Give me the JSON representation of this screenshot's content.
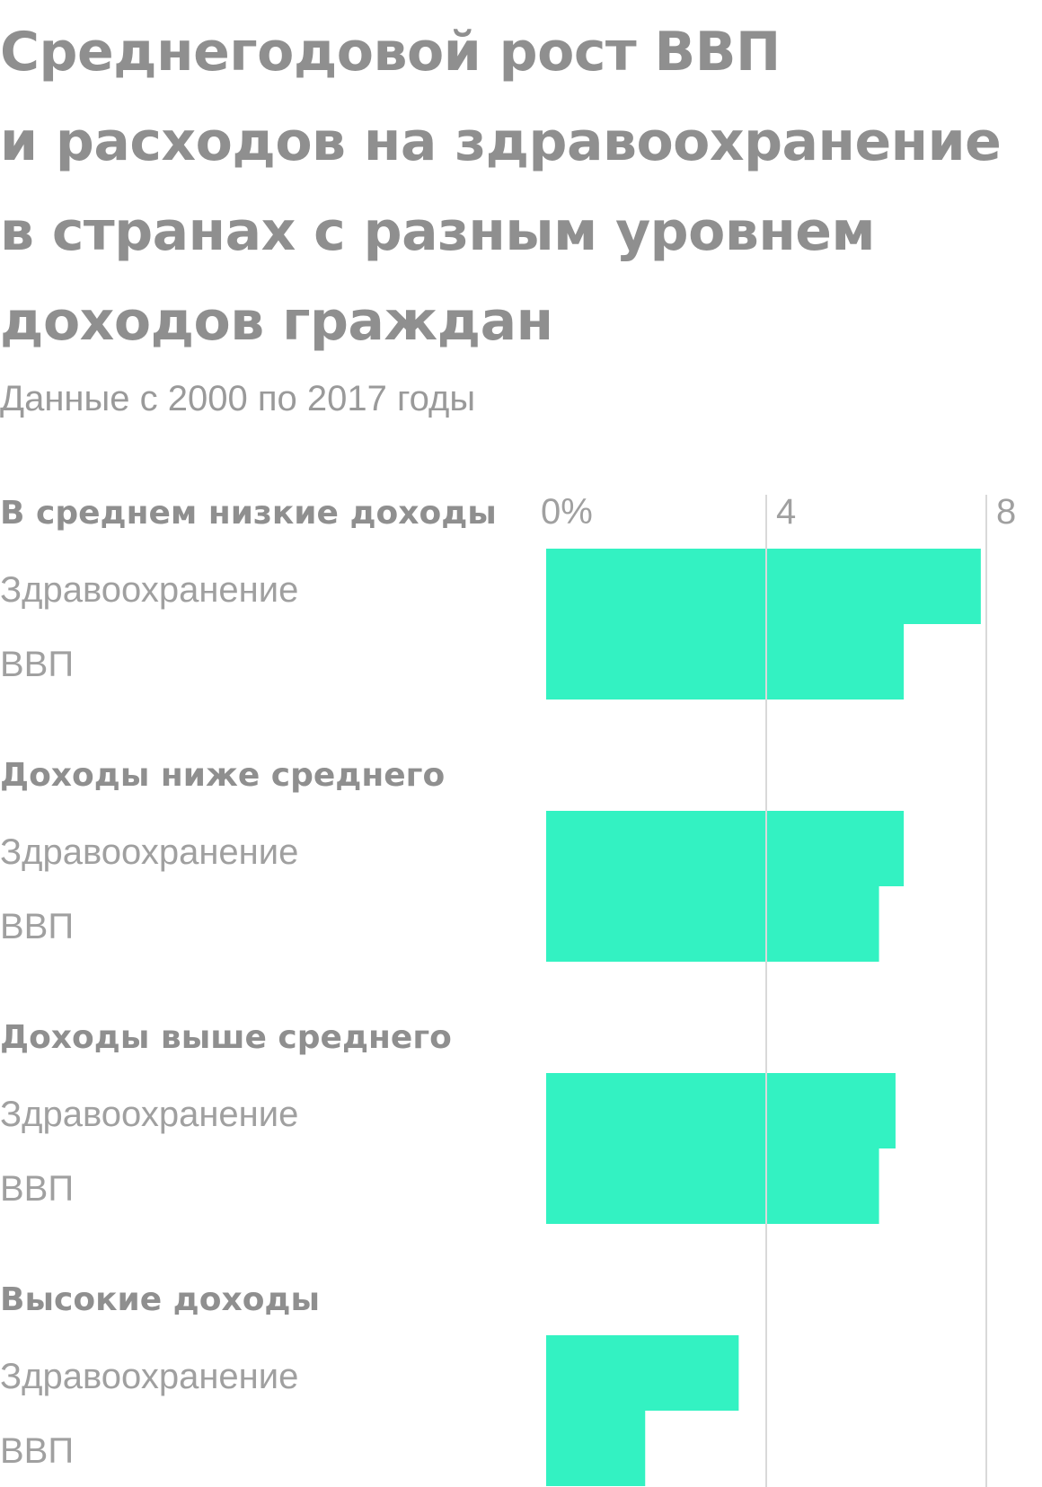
{
  "title_lines": [
    "Среднегодовой рост ВВП",
    "и расходов на здравоохранение",
    "в странах с разным уровнем",
    "доходов граждан"
  ],
  "subtitle": "Данные с 2000 по 2017 годы",
  "colors": {
    "bar": "#33f2c2",
    "text": "#8f8f8f",
    "label": "#a0a0a0",
    "grid": "#d9d9d9"
  },
  "chart_data": {
    "type": "bar",
    "orientation": "horizontal",
    "title": "Среднегодовой рост ВВП и расходов на здравоохранение в странах с разным уровнем доходов граждан",
    "subtitle": "Данные с 2000 по 2017 годы",
    "xlim": [
      0,
      8.5
    ],
    "ticks": [
      {
        "value": 0,
        "label": "0%"
      },
      {
        "value": 4,
        "label": "4"
      },
      {
        "value": 8,
        "label": "8"
      }
    ],
    "grid": true,
    "series_names": [
      "Здравоохранение",
      "ВВП"
    ],
    "groups": [
      {
        "label": "В среднем низкие доходы",
        "values": [
          7.9,
          6.5
        ]
      },
      {
        "label": "Доходы ниже среднего",
        "values": [
          6.5,
          6.05
        ]
      },
      {
        "label": "Доходы выше среднего",
        "values": [
          6.35,
          6.05
        ]
      },
      {
        "label": "Высокие доходы",
        "values": [
          3.5,
          1.8
        ]
      }
    ]
  }
}
